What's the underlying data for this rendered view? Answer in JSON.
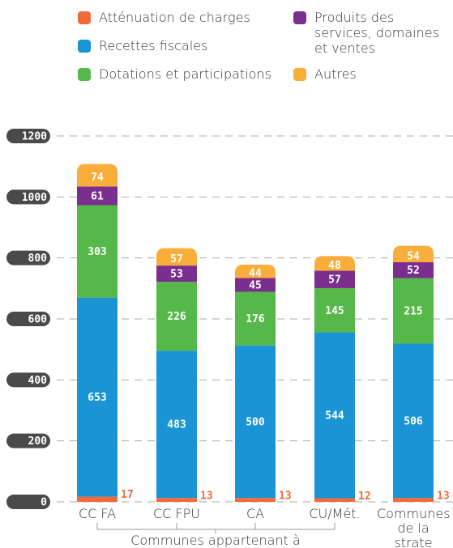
{
  "chart_data": {
    "type": "stacked_bar",
    "categories": [
      "CC FA",
      "CC FPU",
      "CA",
      "CU/Mét.",
      "Communes de la strate"
    ],
    "series": [
      {
        "name": "Atténuation de charges",
        "color": "#f26a3a",
        "values": [
          17,
          13,
          13,
          12,
          13
        ]
      },
      {
        "name": "Recettes fiscales",
        "color": "#1a94d4",
        "values": [
          653,
          483,
          500,
          544,
          506
        ]
      },
      {
        "name": "Dotations et participations",
        "color": "#55b848",
        "values": [
          303,
          226,
          176,
          145,
          215
        ]
      },
      {
        "name": "Produits des services, domaines et ventes",
        "color": "#7a2f8e",
        "values": [
          61,
          53,
          45,
          57,
          52
        ]
      },
      {
        "name": "Autres",
        "color": "#f9ae3c",
        "values": [
          74,
          57,
          44,
          48,
          54
        ]
      }
    ],
    "ylim": [
      0,
      1200
    ],
    "yticks": [
      0,
      200,
      400,
      600,
      800,
      1000,
      1200
    ],
    "grid": true,
    "annotation": "Communes appartenant à"
  }
}
